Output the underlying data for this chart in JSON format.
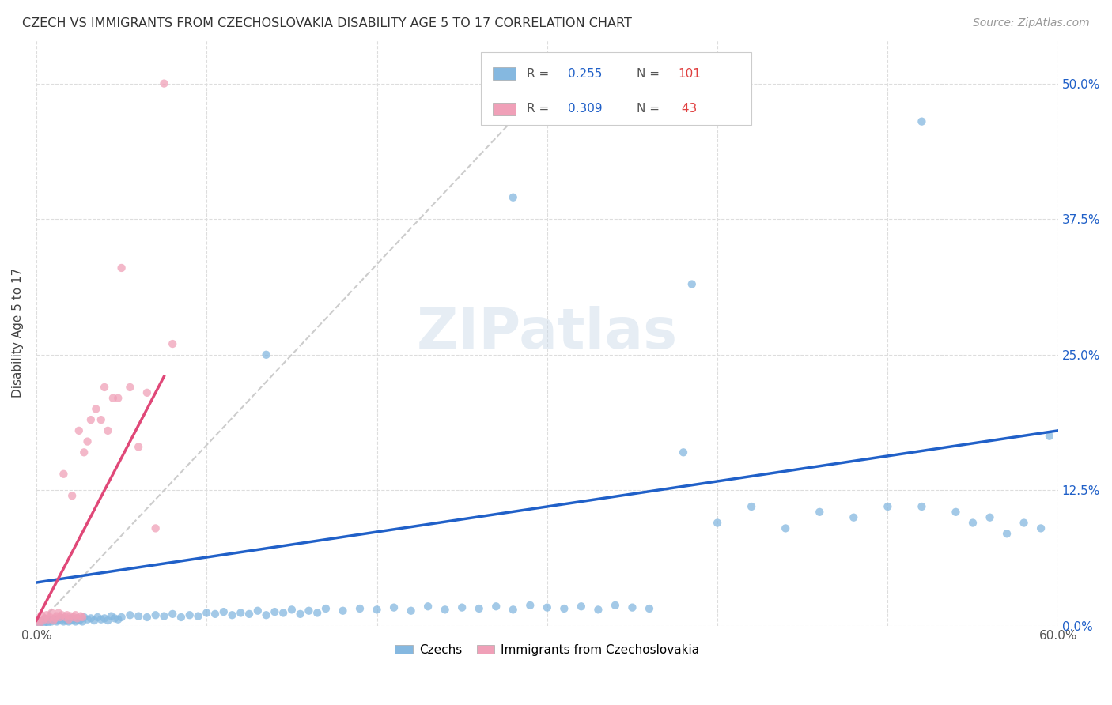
{
  "title": "CZECH VS IMMIGRANTS FROM CZECHOSLOVAKIA DISABILITY AGE 5 TO 17 CORRELATION CHART",
  "source": "Source: ZipAtlas.com",
  "ylabel": "Disability Age 5 to 17",
  "xlim": [
    0.0,
    0.6
  ],
  "ylim": [
    0.0,
    0.54
  ],
  "x_ticks": [
    0.0,
    0.1,
    0.2,
    0.3,
    0.4,
    0.5,
    0.6
  ],
  "x_tick_labels": [
    "0.0%",
    "",
    "",
    "",
    "",
    "",
    "60.0%"
  ],
  "y_ticks": [
    0.0,
    0.125,
    0.25,
    0.375,
    0.5
  ],
  "y_tick_labels_right": [
    "0.0%",
    "12.5%",
    "25.0%",
    "37.5%",
    "50.0%"
  ],
  "czech_color": "#85b8e0",
  "immig_color": "#f0a0b8",
  "trendline_czech_color": "#2060c8",
  "trendline_immig_color": "#e04878",
  "trendline_diag_color": "#cccccc",
  "R_czech": 0.255,
  "N_czech": 101,
  "R_immig": 0.309,
  "N_immig": 43,
  "legend_label_czech": "Czechs",
  "legend_label_immig": "Immigrants from Czechoslovakia",
  "watermark": "ZIPatlas",
  "legend_R_color": "#2060c8",
  "legend_N_color": "#e04040",
  "czech_x": [
    0.001,
    0.002,
    0.003,
    0.004,
    0.005,
    0.006,
    0.007,
    0.008,
    0.009,
    0.01,
    0.011,
    0.012,
    0.013,
    0.014,
    0.015,
    0.016,
    0.017,
    0.018,
    0.019,
    0.02,
    0.021,
    0.022,
    0.023,
    0.024,
    0.025,
    0.026,
    0.027,
    0.028,
    0.03,
    0.032,
    0.034,
    0.036,
    0.038,
    0.04,
    0.042,
    0.044,
    0.046,
    0.048,
    0.05,
    0.055,
    0.06,
    0.065,
    0.07,
    0.075,
    0.08,
    0.085,
    0.09,
    0.095,
    0.1,
    0.105,
    0.11,
    0.115,
    0.12,
    0.125,
    0.13,
    0.135,
    0.14,
    0.145,
    0.15,
    0.155,
    0.16,
    0.165,
    0.17,
    0.18,
    0.19,
    0.2,
    0.21,
    0.22,
    0.23,
    0.24,
    0.25,
    0.26,
    0.27,
    0.28,
    0.29,
    0.3,
    0.31,
    0.32,
    0.33,
    0.34,
    0.35,
    0.36,
    0.38,
    0.4,
    0.42,
    0.44,
    0.46,
    0.48,
    0.5,
    0.52,
    0.54,
    0.55,
    0.56,
    0.57,
    0.58,
    0.59,
    0.595,
    0.28,
    0.385,
    0.52,
    0.135
  ],
  "czech_y": [
    0.005,
    0.003,
    0.004,
    0.002,
    0.006,
    0.004,
    0.003,
    0.005,
    0.004,
    0.006,
    0.005,
    0.004,
    0.006,
    0.005,
    0.007,
    0.004,
    0.006,
    0.005,
    0.004,
    0.007,
    0.005,
    0.006,
    0.004,
    0.007,
    0.005,
    0.006,
    0.004,
    0.008,
    0.006,
    0.007,
    0.005,
    0.008,
    0.006,
    0.007,
    0.005,
    0.009,
    0.007,
    0.006,
    0.008,
    0.01,
    0.009,
    0.008,
    0.01,
    0.009,
    0.011,
    0.008,
    0.01,
    0.009,
    0.012,
    0.011,
    0.013,
    0.01,
    0.012,
    0.011,
    0.014,
    0.01,
    0.013,
    0.012,
    0.015,
    0.011,
    0.014,
    0.012,
    0.016,
    0.014,
    0.016,
    0.015,
    0.017,
    0.014,
    0.018,
    0.015,
    0.017,
    0.016,
    0.018,
    0.015,
    0.019,
    0.017,
    0.016,
    0.018,
    0.015,
    0.019,
    0.017,
    0.016,
    0.16,
    0.095,
    0.11,
    0.09,
    0.105,
    0.1,
    0.11,
    0.11,
    0.105,
    0.095,
    0.1,
    0.085,
    0.095,
    0.09,
    0.175,
    0.395,
    0.315,
    0.465,
    0.25
  ],
  "immig_x": [
    0.001,
    0.002,
    0.003,
    0.004,
    0.005,
    0.006,
    0.007,
    0.008,
    0.009,
    0.01,
    0.011,
    0.012,
    0.013,
    0.014,
    0.015,
    0.016,
    0.017,
    0.018,
    0.019,
    0.02,
    0.021,
    0.022,
    0.023,
    0.024,
    0.025,
    0.026,
    0.027,
    0.028,
    0.03,
    0.032,
    0.035,
    0.038,
    0.04,
    0.042,
    0.045,
    0.048,
    0.05,
    0.055,
    0.06,
    0.065,
    0.07,
    0.075,
    0.08
  ],
  "immig_y": [
    0.005,
    0.003,
    0.01,
    0.005,
    0.007,
    0.01,
    0.006,
    0.008,
    0.012,
    0.005,
    0.007,
    0.009,
    0.012,
    0.008,
    0.01,
    0.14,
    0.008,
    0.01,
    0.006,
    0.009,
    0.12,
    0.008,
    0.01,
    0.007,
    0.18,
    0.009,
    0.008,
    0.16,
    0.17,
    0.19,
    0.2,
    0.19,
    0.22,
    0.18,
    0.21,
    0.21,
    0.33,
    0.22,
    0.165,
    0.215,
    0.09,
    0.5,
    0.26
  ]
}
